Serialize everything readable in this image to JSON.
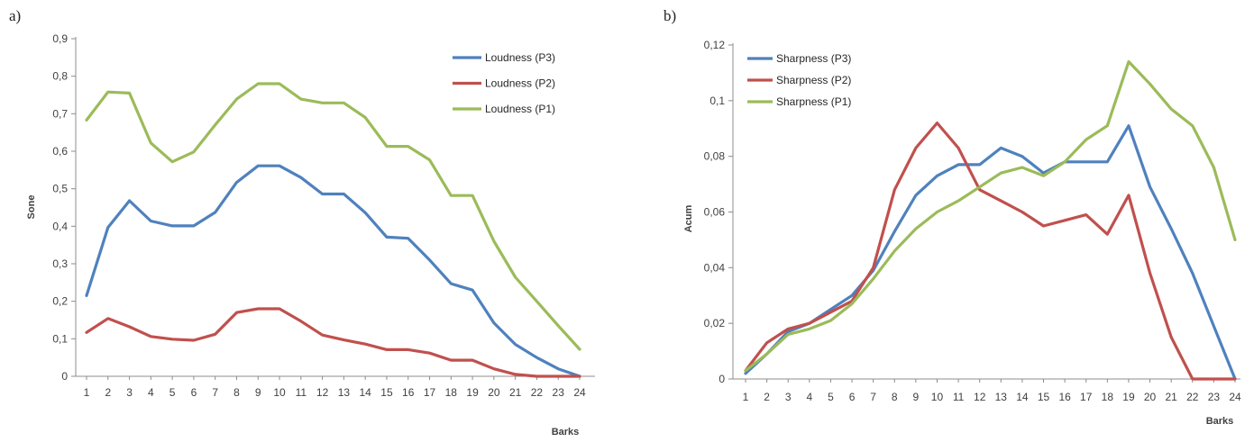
{
  "panels": [
    {
      "letter": "a)",
      "chart_data": {
        "type": "line",
        "title": "",
        "xlabel": "Barks",
        "ylabel": "Sone",
        "categories": [
          "1",
          "2",
          "3",
          "4",
          "5",
          "6",
          "7",
          "8",
          "9",
          "10",
          "11",
          "12",
          "13",
          "14",
          "15",
          "16",
          "17",
          "18",
          "19",
          "20",
          "21",
          "22",
          "23",
          "24"
        ],
        "yticks": [
          "0",
          "0,1",
          "0,2",
          "0,3",
          "0,4",
          "0,5",
          "0,6",
          "0,7",
          "0,8",
          "0,9"
        ],
        "ylim": [
          0,
          0.9
        ],
        "grid": false,
        "legend_position": "top-right",
        "series": [
          {
            "name": "Loudness (P3)",
            "color": "#4f81bd",
            "values": [
              0.215,
              0.397,
              0.468,
              0.414,
              0.401,
              0.401,
              0.437,
              0.517,
              0.561,
              0.561,
              0.53,
              0.486,
              0.486,
              0.436,
              0.371,
              0.368,
              0.31,
              0.247,
              0.23,
              0.142,
              0.085,
              0.05,
              0.02,
              0.0
            ]
          },
          {
            "name": "Loudness (P2)",
            "color": "#c0504d",
            "values": [
              0.117,
              0.154,
              0.132,
              0.106,
              0.099,
              0.096,
              0.112,
              0.17,
              0.18,
              0.18,
              0.147,
              0.11,
              0.097,
              0.086,
              0.071,
              0.071,
              0.062,
              0.043,
              0.043,
              0.02,
              0.005,
              0.0,
              0.0,
              0.0
            ]
          },
          {
            "name": "Loudness (P1)",
            "color": "#9bbb59",
            "values": [
              0.683,
              0.758,
              0.755,
              0.622,
              0.572,
              0.598,
              0.67,
              0.739,
              0.78,
              0.78,
              0.739,
              0.729,
              0.729,
              0.69,
              0.613,
              0.613,
              0.577,
              0.482,
              0.482,
              0.36,
              0.264,
              0.2,
              0.135,
              0.072
            ]
          }
        ]
      }
    },
    {
      "letter": "b)",
      "chart_data": {
        "type": "line",
        "title": "",
        "xlabel": "Barks",
        "ylabel": "Acum",
        "categories": [
          "1",
          "2",
          "3",
          "4",
          "5",
          "6",
          "7",
          "8",
          "9",
          "10",
          "11",
          "12",
          "13",
          "14",
          "15",
          "16",
          "17",
          "18",
          "19",
          "20",
          "21",
          "22",
          "23",
          "24"
        ],
        "yticks": [
          "0",
          "0,02",
          "0,04",
          "0,06",
          "0,08",
          "0,1",
          "0,12"
        ],
        "ylim": [
          0,
          0.12
        ],
        "grid": false,
        "legend_position": "top-left",
        "series": [
          {
            "name": "Sharpness (P3)",
            "color": "#4f81bd",
            "values": [
              0.002,
              0.009,
              0.017,
              0.02,
              0.025,
              0.03,
              0.039,
              0.053,
              0.066,
              0.073,
              0.077,
              0.077,
              0.083,
              0.08,
              0.074,
              0.078,
              0.078,
              0.078,
              0.091,
              0.069,
              0.054,
              0.038,
              0.019,
              0.0
            ]
          },
          {
            "name": "Sharpness (P2)",
            "color": "#c0504d",
            "values": [
              0.003,
              0.013,
              0.018,
              0.02,
              0.024,
              0.028,
              0.04,
              0.068,
              0.083,
              0.092,
              0.083,
              0.068,
              0.064,
              0.06,
              0.055,
              0.057,
              0.059,
              0.052,
              0.066,
              0.038,
              0.015,
              0.0,
              0.0,
              0.0
            ]
          },
          {
            "name": "Sharpness (P1)",
            "color": "#9bbb59",
            "values": [
              0.003,
              0.009,
              0.016,
              0.018,
              0.021,
              0.027,
              0.036,
              0.046,
              0.054,
              0.06,
              0.064,
              0.069,
              0.074,
              0.076,
              0.073,
              0.078,
              0.086,
              0.091,
              0.114,
              0.106,
              0.097,
              0.091,
              0.076,
              0.05
            ]
          }
        ]
      }
    }
  ]
}
